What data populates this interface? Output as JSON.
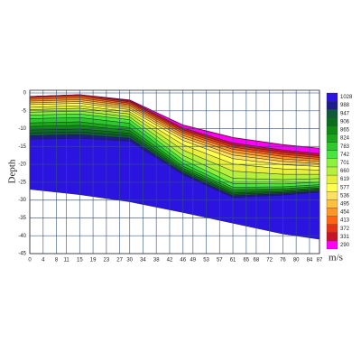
{
  "chart_data": {
    "type": "contour",
    "ylabel": "Depth",
    "colorbar_label": "m/s",
    "xlim": [
      0,
      87
    ],
    "xticks": [
      0,
      4,
      8,
      11,
      15,
      19,
      23,
      27,
      30,
      34,
      38,
      42,
      46,
      49,
      53,
      57,
      61,
      65,
      68,
      72,
      76,
      80,
      84,
      87
    ],
    "ylim": [
      -45,
      0
    ],
    "yticks": [
      0,
      -5,
      -10,
      -15,
      -20,
      -25,
      -30,
      -35,
      -40,
      -45
    ],
    "grid": true,
    "grid_color": "#34507a",
    "x": [
      0,
      15,
      30,
      46,
      61,
      76,
      87
    ],
    "surface": [
      -1,
      -0.5,
      -2,
      -9,
      -12.5,
      -14.5,
      -15.5
    ],
    "series": [
      {
        "name": "290",
        "color": "#ff00ff",
        "values": [
          0,
          0,
          0.2,
          0.8,
          1.5,
          1.5,
          1.5
        ]
      },
      {
        "name": "331",
        "color": "#c81428",
        "values": [
          0,
          0,
          0.3,
          0.5,
          0.6,
          0.6,
          0.6
        ]
      },
      {
        "name": "372",
        "color": "#e63214",
        "values": [
          0.3,
          0.4,
          0.4,
          0.5,
          0.6,
          0.6,
          0.5
        ]
      },
      {
        "name": "413",
        "color": "#ff6414",
        "values": [
          0.5,
          0.5,
          0.4,
          0.5,
          0.6,
          0.6,
          0.5
        ]
      },
      {
        "name": "454",
        "color": "#ff9628",
        "values": [
          0.5,
          0.5,
          0.4,
          0.6,
          0.8,
          0.7,
          0.6
        ]
      },
      {
        "name": "495",
        "color": "#ffc040",
        "values": [
          0.5,
          0.5,
          0.5,
          0.6,
          0.8,
          0.7,
          0.6
        ]
      },
      {
        "name": "536",
        "color": "#ffe060",
        "values": [
          0.5,
          0.5,
          0.5,
          0.8,
          1,
          0.9,
          0.8
        ]
      },
      {
        "name": "577",
        "color": "#ffff50",
        "values": [
          0.7,
          0.7,
          0.6,
          1.2,
          1.5,
          1.2,
          1
        ]
      },
      {
        "name": "619",
        "color": "#e6f03c",
        "values": [
          0.7,
          0.7,
          0.6,
          1.5,
          2,
          1.5,
          1.2
        ]
      },
      {
        "name": "660",
        "color": "#b4f03c",
        "values": [
          0.7,
          0.8,
          0.8,
          1.5,
          2,
          1.5,
          1.2
        ]
      },
      {
        "name": "701",
        "color": "#8cf03c",
        "values": [
          0.8,
          0.8,
          0.8,
          1.2,
          1.5,
          1.2,
          1
        ]
      },
      {
        "name": "742",
        "color": "#46e63c",
        "values": [
          1,
          1,
          1,
          1,
          1,
          0.8,
          0.7
        ]
      },
      {
        "name": "783",
        "color": "#2cc82c",
        "values": [
          1.2,
          1.2,
          1.2,
          0.8,
          0.6,
          0.5,
          0.5
        ]
      },
      {
        "name": "824",
        "color": "#1aa81a",
        "values": [
          1,
          1,
          0.8,
          0.6,
          0.5,
          0.4,
          0.4
        ]
      },
      {
        "name": "865",
        "color": "#0f8c14",
        "values": [
          1,
          1,
          0.8,
          0.5,
          0.5,
          0.4,
          0.3
        ]
      },
      {
        "name": "906",
        "color": "#0a6e1e",
        "values": [
          0.8,
          0.8,
          0.7,
          0.4,
          0.4,
          0.3,
          0.3
        ]
      },
      {
        "name": "947",
        "color": "#0f5a3a",
        "values": [
          0.8,
          0.8,
          0.7,
          0.4,
          0.4,
          0.3,
          0.3
        ]
      },
      {
        "name": "988",
        "color": "#1c1c8c",
        "values": [
          1,
          1,
          0.8,
          0.5,
          0.5,
          0.4,
          0.3
        ]
      },
      {
        "name": "1028",
        "color": "#2b14e0",
        "values": [
          14,
          15.8,
          17,
          10.6,
          7.2,
          10.9,
          13.2
        ]
      }
    ]
  }
}
